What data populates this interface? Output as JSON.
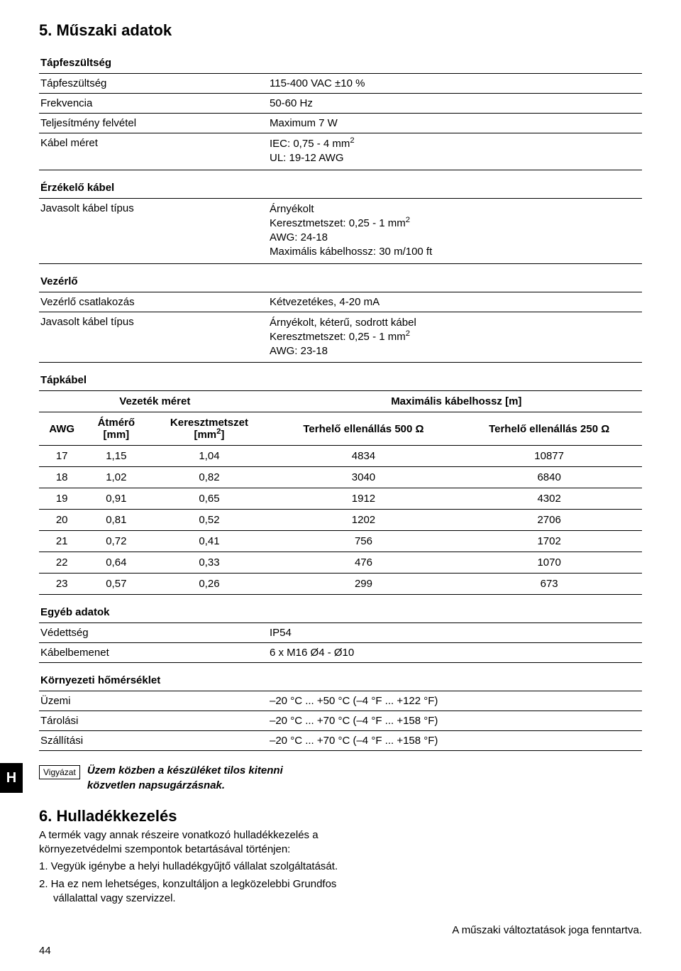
{
  "colors": {
    "text": "#000000",
    "bg": "#ffffff",
    "rule": "#000000",
    "tab_bg": "#000000",
    "tab_fg": "#ffffff"
  },
  "typography": {
    "body_fontsize_pt": 11,
    "h1_fontsize_pt": 16,
    "font_family": "Arial"
  },
  "h1": "5. Műszaki adatok",
  "tapfesz": {
    "label": "Tápfeszültség",
    "rows": [
      {
        "k": "Tápfeszültség",
        "v": "115-400 VAC ±10 %"
      },
      {
        "k": "Frekvencia",
        "v": "50-60 Hz"
      },
      {
        "k": "Teljesítmény felvétel",
        "v": "Maximum 7 W"
      },
      {
        "k": "Kábel méret",
        "v": "IEC: 0,75 - 4 mm²\nUL: 19-12 AWG"
      }
    ]
  },
  "erzkelo": {
    "label": "Érzékelő kábel",
    "rows": [
      {
        "k": "Javasolt kábel típus",
        "v": "Árnyékolt\nKeresztmetszet: 0,25 - 1 mm²\nAWG: 24-18\nMaximális kábelhossz: 30 m/100 ft"
      }
    ]
  },
  "vezerlo": {
    "label": "Vezérlő",
    "rows": [
      {
        "k": "Vezérlő csatlakozás",
        "v": "Kétvezetékes, 4-20 mA"
      },
      {
        "k": "Javasolt kábel típus",
        "v": "Árnyékolt, kéterű, sodrott kábel\nKeresztmetszet: 0,25 - 1 mm²\nAWG: 23-18"
      }
    ]
  },
  "tapkabel": {
    "label": "Tápkábel",
    "head": {
      "left": "Vezeték méret",
      "right": "Maximális kábelhossz [m]",
      "c1": "AWG",
      "c2": "Átmérő\n[mm]",
      "c3": "Keresztmetszet\n[mm²]",
      "c4": "Terhelő ellenállás 500 Ω",
      "c5": "Terhelő ellenállás 250 Ω"
    },
    "columns": [
      "AWG",
      "Átmérő [mm]",
      "Keresztmetszet [mm²]",
      "Terhelő ellenállás 500 Ω",
      "Terhelő ellenállás 250 Ω"
    ],
    "rows": [
      [
        "17",
        "1,15",
        "1,04",
        "4834",
        "10877"
      ],
      [
        "18",
        "1,02",
        "0,82",
        "3040",
        "6840"
      ],
      [
        "19",
        "0,91",
        "0,65",
        "1912",
        "4302"
      ],
      [
        "20",
        "0,81",
        "0,52",
        "1202",
        "2706"
      ],
      [
        "21",
        "0,72",
        "0,41",
        "756",
        "1702"
      ],
      [
        "22",
        "0,64",
        "0,33",
        "476",
        "1070"
      ],
      [
        "23",
        "0,57",
        "0,26",
        "299",
        "673"
      ]
    ]
  },
  "egyeb": {
    "label": "Egyéb adatok",
    "rows": [
      {
        "k": "Védettség",
        "v": "IP54"
      },
      {
        "k": "Kábelbemenet",
        "v": "6 x M16 Ø4 - Ø10"
      }
    ]
  },
  "kornyezeti": {
    "label": "Környezeti hőmérséklet",
    "rows": [
      {
        "k": "Üzemi",
        "v": "–20 °C ... +50 °C (–4 °F ... +122 °F)"
      },
      {
        "k": "Tárolási",
        "v": "–20 °C ... +70 °C (–4 °F ... +158 °F)"
      },
      {
        "k": "Szállítási",
        "v": "–20 °C ... +70 °C (–4 °F ... +158 °F)"
      }
    ]
  },
  "warn": {
    "box": "Vigyázat",
    "text": "Üzem közben a készüléket tilos kitenni\nközvetlen napsugárzásnak."
  },
  "s6": {
    "title": "6. Hulladékkezelés",
    "p1": "A termék vagy annak részeire vonatkozó hulladékkezelés a környezetvédelmi szempontok betartásával történjen:",
    "li1": "1. Vegyük igénybe a helyi hulladékgyűjtő vállalat szolgáltatását.",
    "li2": "2. Ha ez nem lehetséges, konzultáljon a legközelebbi Grundfos vállalattal vagy szervizzel."
  },
  "footer_right": "A műszaki változtatások joga fenntartva.",
  "lang_tab": "H",
  "page_num": "44"
}
